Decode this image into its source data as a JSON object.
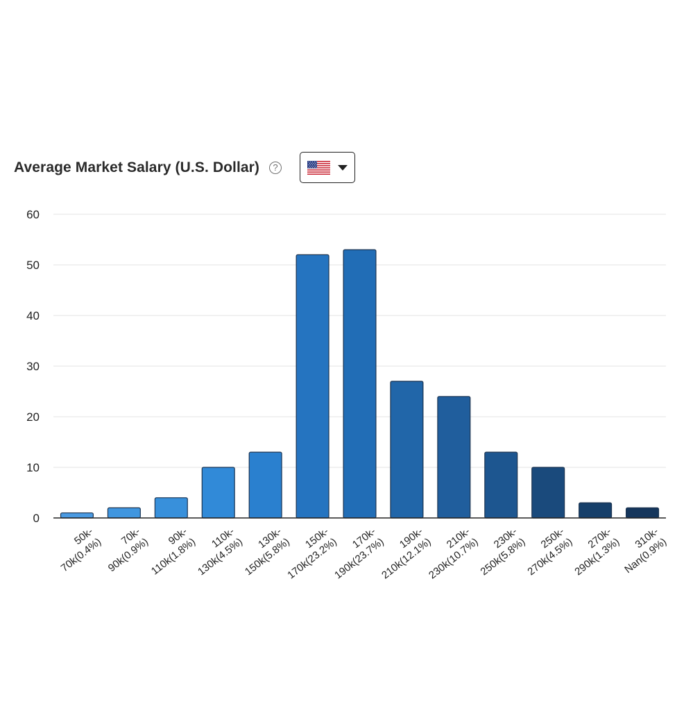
{
  "header": {
    "title": "Average Market Salary (U.S. Dollar)",
    "help_icon": "question-circle-icon",
    "help_glyph": "?",
    "currency_selector": {
      "selected": "US flag",
      "icon": "us-flag-icon",
      "dropdown_icon": "caret-down-icon"
    }
  },
  "chart_data": {
    "type": "bar",
    "title": "",
    "xlabel": "",
    "ylabel": "",
    "ylim": [
      0,
      60
    ],
    "yticks": [
      "0",
      "10",
      "20",
      "30",
      "40",
      "50",
      "60"
    ],
    "grid": true,
    "legend": "none",
    "categories": [
      [
        "50k-",
        "70k(0.4%)"
      ],
      [
        "70k-",
        "90k(0.9%)"
      ],
      [
        "90k-",
        "110k(1.8%)"
      ],
      [
        "110k-",
        "130k(4.5%)"
      ],
      [
        "130k-",
        "150k(5.8%)"
      ],
      [
        "150k-",
        "170k(23.2%)"
      ],
      [
        "170k-",
        "190k(23.7%)"
      ],
      [
        "190k-",
        "210k(12.1%)"
      ],
      [
        "210k-",
        "230k(10.7%)"
      ],
      [
        "230k-",
        "250k(5.8%)"
      ],
      [
        "250k-",
        "270k(4.5%)"
      ],
      [
        "270k-",
        "290k(1.3%)"
      ],
      [
        "310k-",
        "Nan(0.9%)"
      ]
    ],
    "values": [
      1,
      2,
      4,
      10,
      13,
      52,
      53,
      27,
      24,
      13,
      10,
      3,
      2
    ],
    "colors": [
      "#4a9ae2",
      "#4096df",
      "#3890db",
      "#318ad8",
      "#2a80cf",
      "#2574c0",
      "#216db6",
      "#2166a9",
      "#205e9d",
      "#1d5690",
      "#1a4a7c",
      "#163f6a",
      "#15365c"
    ]
  }
}
